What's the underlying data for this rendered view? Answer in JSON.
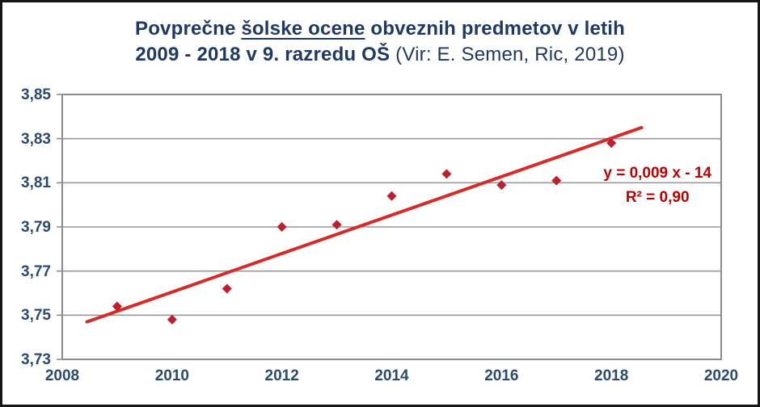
{
  "title": {
    "line1_prefix": "Povprečne ",
    "line1_underline": "šolske ocene",
    "line1_suffix": " obveznih predmetov v letih",
    "line2_bold": "2009 - 2018 v 9. razredu OŠ ",
    "line2_source": "(Vir: E. Semen, Ric, 2019)"
  },
  "chart_data": {
    "type": "scatter",
    "title": "Povprečne šolske ocene obveznih predmetov v letih 2009 - 2018 v 9. razredu OŠ (Vir: E. Semen, Ric, 2019)",
    "x": [
      2009,
      2010,
      2011,
      2012,
      2013,
      2014,
      2015,
      2016,
      2017,
      2018
    ],
    "values": [
      3.754,
      3.748,
      3.762,
      3.79,
      3.791,
      3.804,
      3.814,
      3.809,
      3.811,
      3.828
    ],
    "xlabel": "",
    "ylabel": "",
    "xlim": [
      2008,
      2020
    ],
    "ylim": [
      3.73,
      3.85
    ],
    "xticks": [
      2008,
      2010,
      2012,
      2014,
      2016,
      2018,
      2020
    ],
    "xtick_labels": [
      "2008",
      "2010",
      "2012",
      "2014",
      "2016",
      "2018",
      "2020"
    ],
    "yticks": [
      3.85,
      3.83,
      3.81,
      3.79,
      3.77,
      3.75,
      3.73
    ],
    "ytick_labels": [
      "3,85",
      "3,83",
      "3,81",
      "3,79",
      "3,77",
      "3,75",
      "3,73"
    ],
    "grid": "horizontal",
    "legend": "none",
    "marker": "diamond",
    "trendline": {
      "equation": "y = 0,009 x - 14",
      "r_squared": "R² = 0,90",
      "x_start": 2008.45,
      "y_start": 3.747,
      "x_end": 2018.55,
      "y_end": 3.835
    }
  },
  "colors": {
    "title_text": "#1F3864",
    "axis_text": "#2B4A6F",
    "marker": "#BE1E2D",
    "trendline": "#D62B2B",
    "annotation_text": "#C00000",
    "gridline": "#9A9A9A",
    "plot_border": "#8C8C8C",
    "outer_border": "#161616",
    "background": "#FFFFFF"
  }
}
